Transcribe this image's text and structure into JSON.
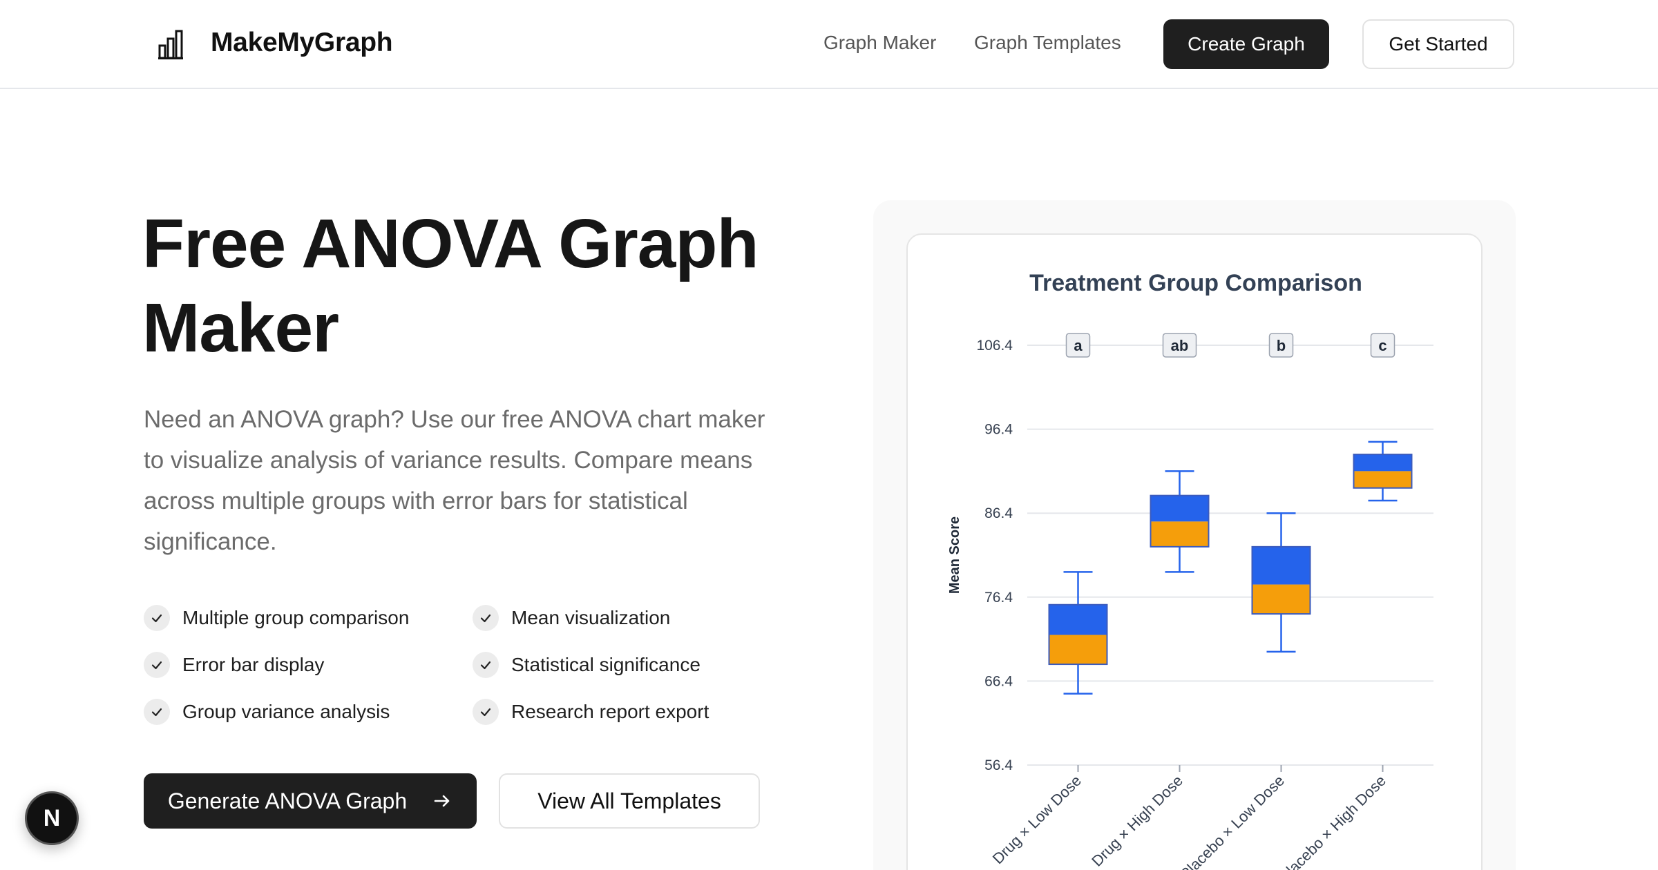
{
  "header": {
    "brand": "MakeMyGraph",
    "logo_icon": "bar-chart-icon",
    "nav": {
      "graph_maker": "Graph Maker",
      "graph_templates": "Graph Templates"
    },
    "create_graph": "Create Graph",
    "get_started": "Get Started"
  },
  "hero": {
    "title": "Free ANOVA Graph Maker",
    "description": "Need an ANOVA graph? Use our free ANOVA chart maker to visualize analysis of variance results. Compare means across multiple groups with error bars for statistical significance.",
    "features": [
      "Multiple group comparison",
      "Mean visualization",
      "Error bar display",
      "Statistical significance",
      "Group variance analysis",
      "Research report export"
    ],
    "generate_button": "Generate ANOVA Graph",
    "templates_button": "View All Templates"
  },
  "fab_label": "N",
  "colors": {
    "box_upper": "#2563eb",
    "box_lower": "#f59e0b",
    "whisker": "#2563eb",
    "grid": "#e5e7eb",
    "title": "#334155",
    "primary_button": "#1f1f1f"
  },
  "chart_data": {
    "type": "box",
    "title": "Treatment Group Comparison",
    "xlabel": "",
    "ylabel": "Mean Score",
    "ylim": [
      56.4,
      106.4
    ],
    "y_ticks": [
      "106.4",
      "96.4",
      "86.4",
      "76.4",
      "66.4",
      "56.4"
    ],
    "categories": [
      "Drug × Low Dose",
      "Drug × High Dose",
      "Placebo × Low Dose",
      "Placebo × High Dose"
    ],
    "significance_letters": [
      "a",
      "ab",
      "b",
      "c"
    ],
    "boxes": [
      {
        "whisker_low": 64.9,
        "q1": 68.4,
        "median": 71.9,
        "q3": 75.5,
        "whisker_high": 79.4
      },
      {
        "whisker_low": 79.4,
        "q1": 82.4,
        "median": 85.4,
        "q3": 88.5,
        "whisker_high": 91.4
      },
      {
        "whisker_low": 69.9,
        "q1": 74.4,
        "median": 77.9,
        "q3": 82.4,
        "whisker_high": 86.4
      },
      {
        "whisker_low": 87.9,
        "q1": 89.4,
        "median": 91.4,
        "q3": 93.4,
        "whisker_high": 94.9
      }
    ],
    "grid": true
  }
}
